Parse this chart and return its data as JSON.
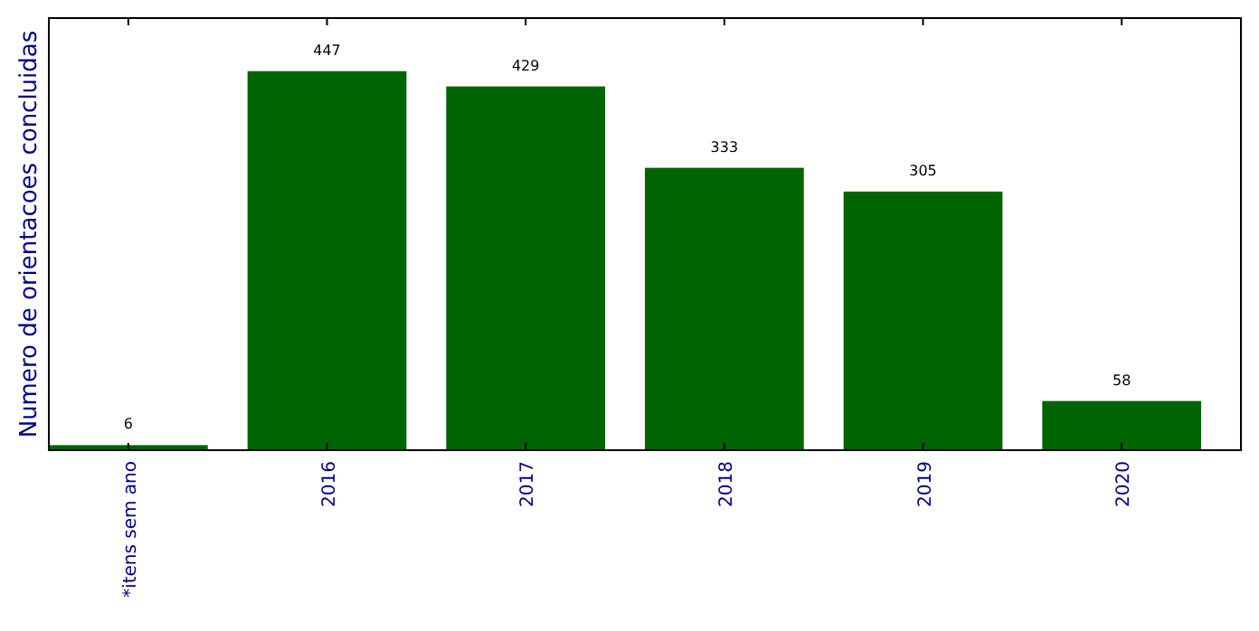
{
  "chart_data": {
    "type": "bar",
    "ylabel": "Numero de orientacoes concluidas",
    "categories": [
      "*itens sem ano",
      "2016",
      "2017",
      "2018",
      "2019",
      "2020"
    ],
    "values": [
      6,
      447,
      429,
      333,
      305,
      58
    ],
    "color": "#006400",
    "data_labels": true,
    "tick_labels": "x"
  }
}
